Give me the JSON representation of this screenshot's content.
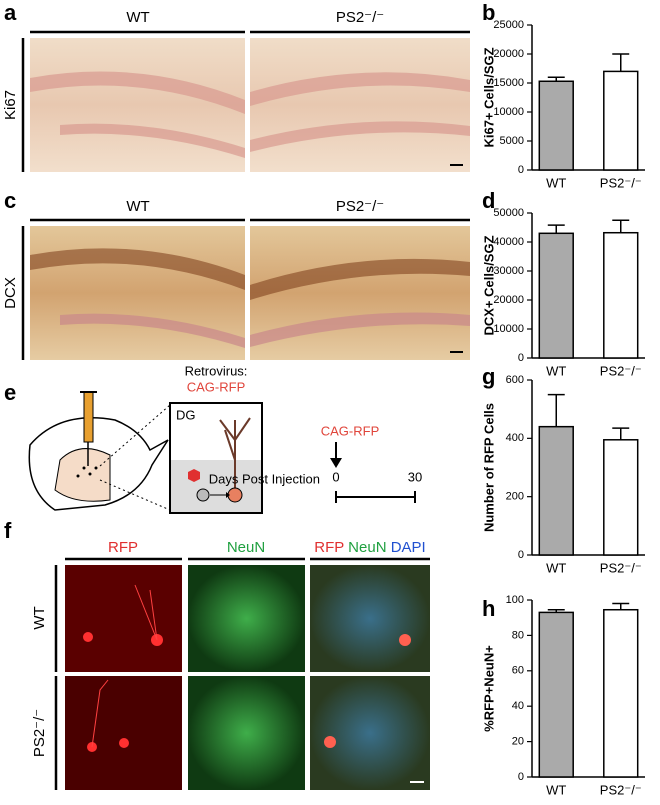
{
  "panel_labels": [
    "a",
    "b",
    "c",
    "d",
    "e",
    "f",
    "g",
    "h"
  ],
  "micrographs": {
    "a": {
      "columns": [
        "WT",
        "PS2⁻/⁻"
      ],
      "row": "Ki67"
    },
    "c": {
      "columns": [
        "WT",
        "PS2⁻/⁻"
      ],
      "row": "DCX"
    },
    "f": {
      "columns": [
        "RFP",
        "NeuN"
      ],
      "merge": [
        "RFP",
        "NeuN",
        "DAPI"
      ],
      "rows": [
        "WT",
        "PS2⁻/⁻"
      ]
    }
  },
  "diagram": {
    "virus": "Retrovirus:",
    "construct": "CAG-RFP",
    "region": "DG",
    "injection": "CAG-RFP",
    "timeline_label": "Days Post Injection",
    "start": "0",
    "end": "30"
  },
  "chart_data": [
    {
      "type": "bar",
      "y_label": "Ki67+ Cells/SGZ",
      "categories": [
        "WT",
        "PS2⁻/⁻"
      ],
      "values": [
        15300,
        17000
      ],
      "errors": [
        700,
        3000
      ],
      "colors": [
        "#aaaaaa",
        "#ffffff"
      ],
      "ylim": [
        0,
        25000
      ],
      "yticks": [
        0,
        5000,
        10000,
        15000,
        20000,
        25000
      ]
    },
    {
      "type": "bar",
      "y_label": "DCX+ Cells/SGZ",
      "categories": [
        "WT",
        "PS2⁻/⁻"
      ],
      "values": [
        43000,
        43200
      ],
      "errors": [
        2800,
        4300
      ],
      "colors": [
        "#aaaaaa",
        "#ffffff"
      ],
      "ylim": [
        0,
        50000
      ],
      "yticks": [
        0,
        10000,
        20000,
        30000,
        40000,
        50000
      ]
    },
    {
      "type": "bar",
      "y_label": "Number of RFP Cells",
      "categories": [
        "WT",
        "PS2⁻/⁻"
      ],
      "values": [
        440,
        395
      ],
      "errors": [
        110,
        40
      ],
      "colors": [
        "#aaaaaa",
        "#ffffff"
      ],
      "ylim": [
        0,
        600
      ],
      "yticks": [
        0,
        200,
        400,
        600
      ]
    },
    {
      "type": "bar",
      "y_label": "%RFP+NeuN+",
      "categories": [
        "WT",
        "PS2⁻/⁻"
      ],
      "values": [
        93,
        94.5
      ],
      "errors": [
        1.5,
        3.5
      ],
      "colors": [
        "#aaaaaa",
        "#ffffff"
      ],
      "ylim": [
        0,
        100
      ],
      "yticks": [
        0,
        20,
        40,
        60,
        80,
        100
      ]
    }
  ]
}
